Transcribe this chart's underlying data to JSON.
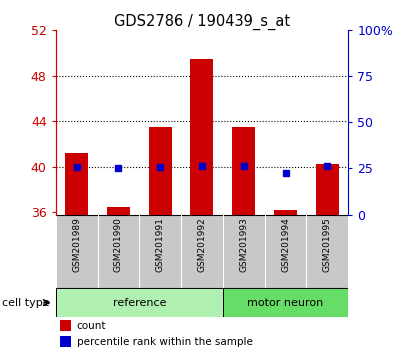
{
  "title": "GDS2786 / 190439_s_at",
  "samples": [
    "GSM201989",
    "GSM201990",
    "GSM201991",
    "GSM201992",
    "GSM201993",
    "GSM201994",
    "GSM201995"
  ],
  "groups": [
    "reference",
    "reference",
    "reference",
    "reference",
    "motor neuron",
    "motor neuron",
    "motor neuron"
  ],
  "count_values": [
    41.2,
    36.5,
    43.5,
    49.5,
    43.5,
    36.2,
    40.2
  ],
  "percentile_values": [
    26.0,
    25.0,
    26.0,
    26.5,
    26.5,
    22.5,
    26.5
  ],
  "bar_bottom": 35.8,
  "ylim_left": [
    35.8,
    52
  ],
  "ylim_right": [
    0,
    100
  ],
  "yticks_left": [
    36,
    40,
    44,
    48,
    52
  ],
  "yticks_right": [
    0,
    25,
    50,
    75,
    100
  ],
  "ytick_labels_right": [
    "0",
    "25",
    "50",
    "75",
    "100%"
  ],
  "left_axis_color": "#cc0000",
  "right_axis_color": "#0000cc",
  "bar_color": "#cc0000",
  "dot_color": "#0000cc",
  "grid_lines": [
    40,
    44,
    48
  ],
  "ref_group_color": "#b0f0b0",
  "motor_group_color": "#66dd66",
  "sample_box_color": "#c8c8c8",
  "cell_type_label": "cell type",
  "legend_count": "count",
  "legend_percentile": "percentile rank within the sample",
  "ref_count": 4,
  "motor_count": 3
}
